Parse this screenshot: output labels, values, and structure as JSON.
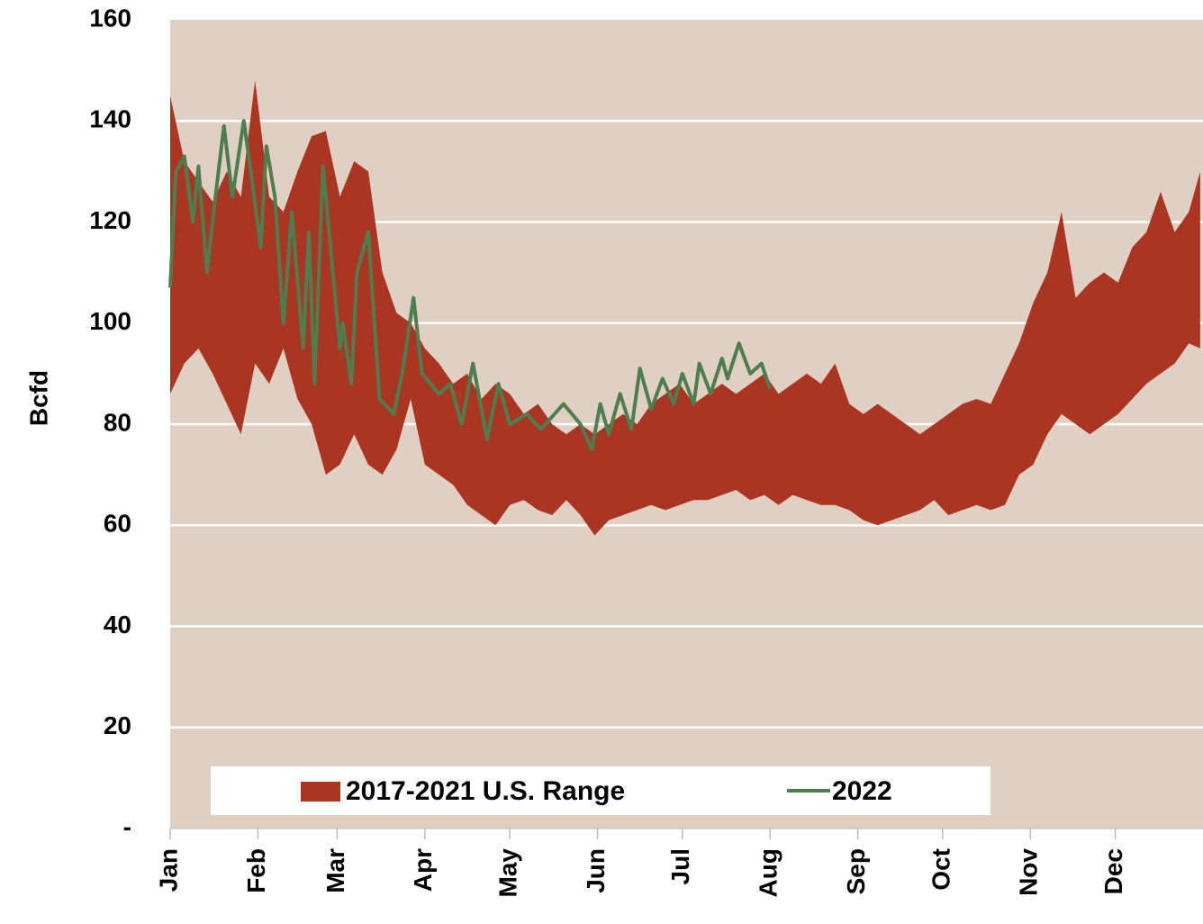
{
  "chart_data": {
    "type": "range-line",
    "y_label": "Bcfd",
    "xlim": [
      1,
      366
    ],
    "xticks": [
      {
        "value": 1,
        "label": "Jan"
      },
      {
        "value": 32,
        "label": "Feb"
      },
      {
        "value": 60,
        "label": "Mar"
      },
      {
        "value": 91,
        "label": "Apr"
      },
      {
        "value": 121,
        "label": "May"
      },
      {
        "value": 152,
        "label": "Jun"
      },
      {
        "value": 182,
        "label": "Jul"
      },
      {
        "value": 213,
        "label": "Aug"
      },
      {
        "value": 244,
        "label": "Sep"
      },
      {
        "value": 274,
        "label": "Oct"
      },
      {
        "value": 305,
        "label": "Nov"
      },
      {
        "value": 335,
        "label": "Dec"
      }
    ],
    "ylim": [
      0,
      160
    ],
    "yticks": [
      {
        "value": 0,
        "label": "-"
      },
      20,
      40,
      60,
      80,
      100,
      120,
      140,
      160
    ],
    "grid": true,
    "plot_background": "#e0d0c4",
    "series": [
      {
        "name": "2017-2021 U.S. Range",
        "color": "#a93522",
        "x": [
          1,
          6,
          11,
          16,
          21,
          26,
          31,
          36,
          41,
          46,
          51,
          56,
          61,
          66,
          71,
          76,
          81,
          86,
          91,
          96,
          101,
          106,
          111,
          116,
          121,
          126,
          131,
          136,
          141,
          146,
          151,
          156,
          161,
          166,
          171,
          176,
          181,
          186,
          191,
          196,
          201,
          206,
          211,
          216,
          221,
          226,
          231,
          236,
          241,
          246,
          251,
          256,
          261,
          266,
          271,
          276,
          281,
          286,
          291,
          296,
          301,
          306,
          311,
          316,
          321,
          326,
          331,
          336,
          341,
          346,
          351,
          356,
          361,
          365
        ],
        "high": [
          145,
          132,
          128,
          124,
          130,
          125,
          148,
          125,
          122,
          130,
          137,
          138,
          125,
          132,
          130,
          110,
          102,
          100,
          95,
          92,
          88,
          90,
          85,
          88,
          86,
          82,
          84,
          80,
          78,
          80,
          78,
          80,
          82,
          80,
          84,
          86,
          88,
          84,
          86,
          88,
          86,
          88,
          90,
          86,
          88,
          90,
          88,
          92,
          84,
          82,
          84,
          82,
          80,
          78,
          80,
          82,
          84,
          85,
          84,
          90,
          96,
          104,
          110,
          122,
          105,
          108,
          110,
          108,
          115,
          118,
          126,
          118,
          122,
          130
        ],
        "low": [
          86,
          92,
          95,
          90,
          84,
          78,
          92,
          88,
          95,
          85,
          80,
          70,
          72,
          78,
          72,
          70,
          75,
          85,
          72,
          70,
          68,
          64,
          62,
          60,
          64,
          65,
          63,
          62,
          65,
          62,
          58,
          61,
          62,
          63,
          64,
          63,
          64,
          65,
          65,
          66,
          67,
          65,
          66,
          64,
          66,
          65,
          64,
          64,
          63,
          61,
          60,
          61,
          62,
          63,
          65,
          62,
          63,
          64,
          63,
          64,
          70,
          72,
          78,
          82,
          80,
          78,
          80,
          82,
          85,
          88,
          90,
          92,
          96,
          95
        ]
      },
      {
        "name": "2022",
        "color": "#4e7d4e",
        "x": [
          1,
          3,
          6,
          9,
          11,
          14,
          17,
          20,
          23,
          27,
          30,
          33,
          35,
          38,
          41,
          44,
          48,
          50,
          52,
          55,
          61,
          62,
          65,
          67,
          71,
          75,
          80,
          83,
          87,
          90,
          96,
          100,
          104,
          108,
          113,
          117,
          121,
          127,
          132,
          140,
          146,
          150,
          153,
          156,
          160,
          164,
          167,
          171,
          175,
          179,
          182,
          186,
          188,
          192,
          196,
          198,
          202,
          206,
          210,
          213
        ],
        "values": [
          107,
          130,
          133,
          120,
          131,
          110,
          125,
          139,
          125,
          140,
          128,
          115,
          135,
          125,
          100,
          122,
          95,
          118,
          88,
          131,
          95,
          100,
          88,
          110,
          118,
          85,
          82,
          90,
          105,
          90,
          86,
          88,
          80,
          92,
          77,
          88,
          80,
          82,
          79,
          84,
          80,
          75,
          84,
          78,
          86,
          79,
          91,
          83,
          89,
          84,
          90,
          84,
          92,
          86,
          93,
          89,
          96,
          90,
          92,
          87
        ]
      }
    ]
  }
}
